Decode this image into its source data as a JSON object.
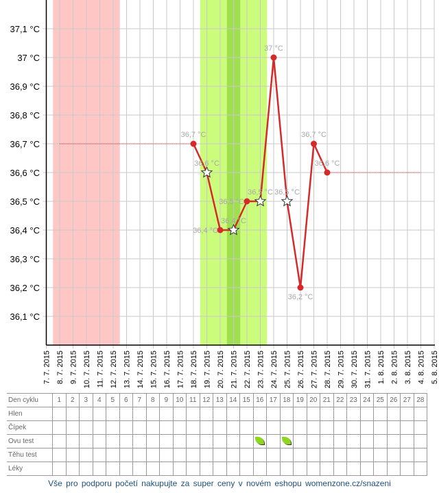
{
  "chart_data": {
    "type": "line",
    "x": [
      "7. 7. 2015",
      "8. 7. 2015",
      "9. 7. 2015",
      "10. 7. 2015",
      "11. 7. 2015",
      "12. 7. 2015",
      "13. 7. 2015",
      "14. 7. 2015",
      "15. 7. 2015",
      "16. 7. 2015",
      "17. 7. 2015",
      "18. 7. 2015",
      "19. 7. 2015",
      "20. 7. 2015",
      "21. 7. 2015",
      "22. 7. 2015",
      "23. 7. 2015",
      "24. 7. 2015",
      "25. 7. 2015",
      "26. 7. 2015",
      "27. 7. 2015",
      "28. 7. 2015",
      "29. 7. 2015",
      "30. 7. 2015",
      "31. 7. 2015",
      "1. 8. 2015",
      "2. 8. 2015",
      "3. 8. 2015",
      "4. 8. 2015",
      "5. 8. 2015"
    ],
    "ylim": [
      36.0,
      37.2
    ],
    "yticks": [
      36.1,
      36.2,
      36.3,
      36.4,
      36.5,
      36.6,
      36.7,
      36.8,
      36.9,
      37.0,
      37.1
    ],
    "ytick_labels": [
      "36,1 °C",
      "36,2 °C",
      "36,3 °C",
      "36,4 °C",
      "36,5 °C",
      "36,6 °C",
      "36,7 °C",
      "36,8 °C",
      "36,9 °C",
      "37 °C",
      "37,1 °C"
    ],
    "grid": true,
    "points": [
      {
        "day": 11,
        "value": 36.7,
        "label": "36,7 °C",
        "marker": "dot"
      },
      {
        "day": 12,
        "value": 36.6,
        "label": "36,6 °C",
        "marker": "star"
      },
      {
        "day": 13,
        "value": 36.4,
        "label": "36,4 °C",
        "marker": "dot"
      },
      {
        "day": 14,
        "value": 36.4,
        "label": "36,4 °C",
        "marker": "star"
      },
      {
        "day": 15,
        "value": 36.5,
        "label": "36,5 °C",
        "marker": "dot"
      },
      {
        "day": 16,
        "value": 36.5,
        "label": "36,5 °C",
        "marker": "star"
      },
      {
        "day": 17,
        "value": 37.0,
        "label": "37 °C",
        "marker": "dot"
      },
      {
        "day": 18,
        "value": 36.5,
        "label": "36,5 °C",
        "marker": "star"
      },
      {
        "day": 19,
        "value": 36.2,
        "label": "36,2 °C",
        "marker": "dot"
      },
      {
        "day": 20,
        "value": 36.7,
        "label": "36,7 °C",
        "marker": "dot"
      },
      {
        "day": 21,
        "value": 36.6,
        "label": "36,6 °C",
        "marker": "dot"
      }
    ],
    "baselines": [
      {
        "from": 1,
        "to": 11,
        "value": 36.7
      },
      {
        "from": 21,
        "to": 28,
        "value": 36.6
      }
    ],
    "bands": [
      {
        "from": 0.5,
        "to": 5.5,
        "color": "#ffc6c6"
      },
      {
        "from": 11.5,
        "to": 16.5,
        "color": "#ccfc7c"
      },
      {
        "from": 13.5,
        "to": 14.5,
        "color": "#a0e050"
      }
    ],
    "line_color": "#d42a2a"
  },
  "table": {
    "header_label": "Den cyklu",
    "days": [
      "1",
      "2",
      "3",
      "4",
      "5",
      "6",
      "7",
      "8",
      "9",
      "10",
      "11",
      "12",
      "13",
      "14",
      "15",
      "16",
      "17",
      "18",
      "19",
      "20",
      "21",
      "22",
      "23",
      "24",
      "25",
      "26",
      "27",
      "28"
    ],
    "rows": [
      {
        "label": "Hlen",
        "marks": []
      },
      {
        "label": "Čípek",
        "marks": []
      },
      {
        "label": "Ovu test",
        "marks": [
          16,
          18
        ],
        "icon": "leaf-icon"
      },
      {
        "label": "Těhu test",
        "marks": []
      },
      {
        "label": "Léky",
        "marks": []
      }
    ]
  },
  "footer": "Vše pro podporu početí nakupujte za super ceny v novém eshopu womenzone.cz/snazeni"
}
